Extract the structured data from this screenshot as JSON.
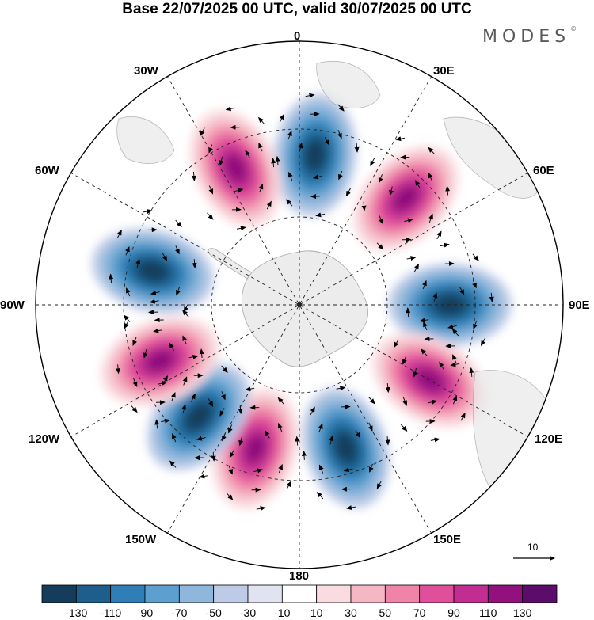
{
  "title": "Base 22/07/2025 00 UTC, valid 30/07/2025 00 UTC",
  "brand": {
    "name": "MODES",
    "mark": "©"
  },
  "longitude_labels": {
    "lon_0": "0",
    "lon_30e": "30E",
    "lon_60e": "60E",
    "lon_90e": "90E",
    "lon_120e": "120E",
    "lon_150e": "150E",
    "lon_180": "180",
    "lon_150w": "150W",
    "lon_120w": "120W",
    "lon_90w": "90W",
    "lon_60w": "60W",
    "lon_30w": "30W"
  },
  "reference_vector": {
    "label": "10"
  },
  "colorbar": {
    "colors": [
      "#163c5c",
      "#1d5e8c",
      "#2f7fb6",
      "#5d9fce",
      "#8fb7dc",
      "#bdcbe6",
      "#e2e3f1",
      "#ffffff",
      "#f9dbe0",
      "#f5b7c4",
      "#ef84a8",
      "#e0509a",
      "#c22d91",
      "#92117e",
      "#5c0d6c"
    ],
    "labels": [
      "-130",
      "-110",
      "-90",
      "-70",
      "-50",
      "-30",
      "-10",
      "10",
      "30",
      "50",
      "70",
      "90",
      "110",
      "130"
    ]
  },
  "anomaly_centers": [
    {
      "lon_deg": 6,
      "sign": "negative"
    },
    {
      "lon_deg": 45,
      "sign": "positive"
    },
    {
      "lon_deg": 90,
      "sign": "negative"
    },
    {
      "lon_deg": 120,
      "sign": "positive"
    },
    {
      "lon_deg": 162,
      "sign": "negative"
    },
    {
      "lon_deg": 197,
      "sign": "positive"
    },
    {
      "lon_deg": 222,
      "sign": "negative"
    },
    {
      "lon_deg": 248,
      "sign": "positive"
    },
    {
      "lon_deg": 283,
      "sign": "negative"
    },
    {
      "lon_deg": 335,
      "sign": "positive"
    }
  ]
}
